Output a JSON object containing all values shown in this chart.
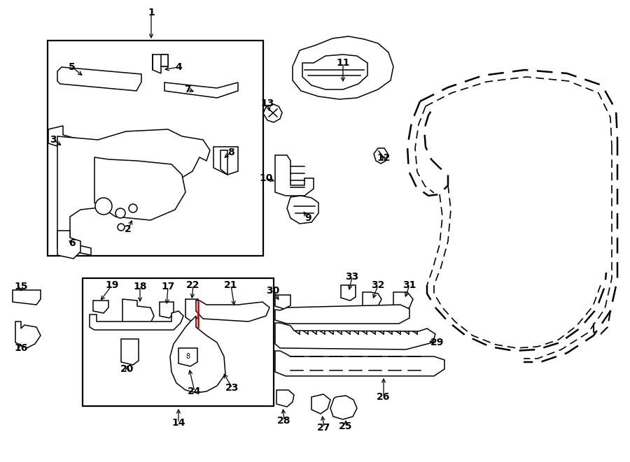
{
  "bg_color": "#ffffff",
  "line_color": "#000000",
  "red_color": "#cc0000",
  "fig_width": 9.0,
  "fig_height": 6.61,
  "dpi": 100
}
